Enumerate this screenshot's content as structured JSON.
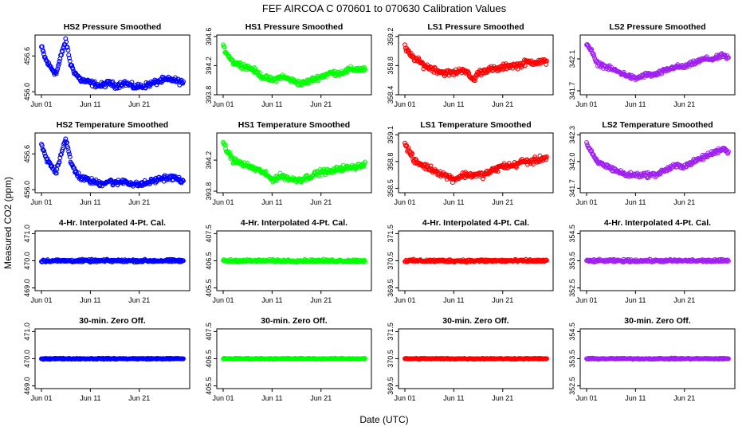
{
  "figure": {
    "title": "FEF   AIRCOA C   070601 to 070630   Calibration Values",
    "xlabel": "Date (UTC)",
    "ylabel": "Measured CO2 (ppm)"
  },
  "chart_data": {
    "type": "scatter",
    "marker": "open-circle",
    "x_range": [
      0,
      29
    ],
    "x_ticks": [
      {
        "value": 0,
        "label": "Jun 01"
      },
      {
        "value": 10,
        "label": "Jun 11"
      },
      {
        "value": 20,
        "label": "Jun 21"
      }
    ],
    "columns": [
      {
        "name": "HS2",
        "color": "#0000ff"
      },
      {
        "name": "HS1",
        "color": "#00ff00"
      },
      {
        "name": "LS1",
        "color": "#ff0000"
      },
      {
        "name": "LS2",
        "color": "#a020f0"
      }
    ],
    "panels": [
      {
        "title": "HS2 Pressure Smoothed",
        "ylim": [
          455.95,
          456.95
        ],
        "yticks": [
          "456.0",
          "456.6"
        ],
        "ytick_values": [
          456.0,
          456.6
        ],
        "series": [
          [
            0,
            456.75
          ],
          [
            0.8,
            456.55
          ],
          [
            1.5,
            456.45
          ],
          [
            3,
            456.3
          ],
          [
            4.5,
            456.75
          ],
          [
            5,
            456.85
          ],
          [
            6,
            456.45
          ],
          [
            7,
            456.3
          ],
          [
            8,
            456.2
          ],
          [
            10,
            456.15
          ],
          [
            12,
            456.1
          ],
          [
            14,
            456.15
          ],
          [
            15,
            456.1
          ],
          [
            17,
            456.15
          ],
          [
            19,
            456.08
          ],
          [
            21,
            456.1
          ],
          [
            23,
            456.15
          ],
          [
            25,
            456.2
          ],
          [
            27,
            456.2
          ],
          [
            29,
            456.15
          ]
        ],
        "noise": 0.07
      },
      {
        "title": "HS1 Pressure Smoothed",
        "ylim": [
          393.8,
          394.62
        ],
        "yticks": [
          "393.8",
          "394.2",
          "394.6"
        ],
        "ytick_values": [
          393.8,
          394.2,
          394.6
        ],
        "series": [
          [
            0,
            394.45
          ],
          [
            1,
            394.35
          ],
          [
            2,
            394.25
          ],
          [
            4,
            394.2
          ],
          [
            6,
            394.15
          ],
          [
            8,
            394.05
          ],
          [
            10,
            394.0
          ],
          [
            12,
            394.05
          ],
          [
            14,
            394.0
          ],
          [
            16,
            393.95
          ],
          [
            18,
            394.0
          ],
          [
            20,
            394.05
          ],
          [
            22,
            394.1
          ],
          [
            24,
            394.1
          ],
          [
            26,
            394.15
          ],
          [
            29,
            394.15
          ]
        ],
        "noise": 0.05
      },
      {
        "title": "LS1 Pressure Smoothed",
        "ylim": [
          358.4,
          359.22
        ],
        "yticks": [
          "358.4",
          "358.8",
          "359.2"
        ],
        "ytick_values": [
          358.4,
          358.8,
          359.2
        ],
        "series": [
          [
            0,
            359.05
          ],
          [
            1,
            358.95
          ],
          [
            2,
            358.9
          ],
          [
            4,
            358.8
          ],
          [
            6,
            358.75
          ],
          [
            8,
            358.7
          ],
          [
            10,
            358.7
          ],
          [
            12,
            358.75
          ],
          [
            14,
            358.6
          ],
          [
            15,
            358.7
          ],
          [
            17,
            358.75
          ],
          [
            19,
            358.75
          ],
          [
            21,
            358.8
          ],
          [
            23,
            358.8
          ],
          [
            25,
            358.85
          ],
          [
            27,
            358.85
          ],
          [
            29,
            358.85
          ]
        ],
        "noise": 0.06
      },
      {
        "title": "LS2 Pressure Smoothed",
        "ylim": [
          341.65,
          342.4
        ],
        "yticks": [
          "341.7",
          "342.1"
        ],
        "ytick_values": [
          341.7,
          342.1
        ],
        "series": [
          [
            0,
            342.3
          ],
          [
            1,
            342.2
          ],
          [
            2,
            342.05
          ],
          [
            4,
            342.0
          ],
          [
            6,
            341.95
          ],
          [
            8,
            341.9
          ],
          [
            10,
            341.85
          ],
          [
            12,
            341.9
          ],
          [
            14,
            341.9
          ],
          [
            16,
            341.95
          ],
          [
            18,
            342.0
          ],
          [
            20,
            342.0
          ],
          [
            22,
            342.05
          ],
          [
            24,
            342.1
          ],
          [
            26,
            342.1
          ],
          [
            28,
            342.15
          ],
          [
            29,
            342.1
          ]
        ],
        "noise": 0.04
      },
      {
        "title": "HS2 Temperature Smoothed",
        "ylim": [
          455.95,
          456.95
        ],
        "yticks": [
          "456.0",
          "456.6"
        ],
        "ytick_values": [
          456.0,
          456.6
        ],
        "series": [
          [
            0,
            456.75
          ],
          [
            0.8,
            456.55
          ],
          [
            1.5,
            456.45
          ],
          [
            3,
            456.3
          ],
          [
            4.5,
            456.75
          ],
          [
            5,
            456.85
          ],
          [
            6,
            456.45
          ],
          [
            7,
            456.3
          ],
          [
            8,
            456.2
          ],
          [
            10,
            456.15
          ],
          [
            12,
            456.1
          ],
          [
            14,
            456.15
          ],
          [
            15,
            456.1
          ],
          [
            17,
            456.15
          ],
          [
            19,
            456.08
          ],
          [
            21,
            456.1
          ],
          [
            23,
            456.15
          ],
          [
            25,
            456.2
          ],
          [
            27,
            456.2
          ],
          [
            29,
            456.15
          ]
        ],
        "noise": 0.07
      },
      {
        "title": "HS1 Temperature Smoothed",
        "ylim": [
          393.78,
          394.55
        ],
        "yticks": [
          "393.8",
          "394.2"
        ],
        "ytick_values": [
          393.8,
          394.2
        ],
        "series": [
          [
            0,
            394.4
          ],
          [
            1,
            394.3
          ],
          [
            2,
            394.2
          ],
          [
            4,
            394.15
          ],
          [
            6,
            394.1
          ],
          [
            8,
            394.05
          ],
          [
            10,
            393.95
          ],
          [
            12,
            394.0
          ],
          [
            14,
            393.95
          ],
          [
            16,
            393.95
          ],
          [
            18,
            394.0
          ],
          [
            20,
            394.05
          ],
          [
            22,
            394.05
          ],
          [
            24,
            394.1
          ],
          [
            26,
            394.1
          ],
          [
            29,
            394.15
          ]
        ],
        "noise": 0.05
      },
      {
        "title": "LS1 Temperature Smoothed",
        "ylim": [
          358.45,
          359.12
        ],
        "yticks": [
          "358.5",
          "358.8",
          "359.1"
        ],
        "ytick_values": [
          358.5,
          358.8,
          359.1
        ],
        "series": [
          [
            0,
            359.0
          ],
          [
            1,
            358.9
          ],
          [
            2,
            358.8
          ],
          [
            4,
            358.75
          ],
          [
            6,
            358.7
          ],
          [
            8,
            358.65
          ],
          [
            10,
            358.6
          ],
          [
            12,
            358.65
          ],
          [
            14,
            358.65
          ],
          [
            16,
            358.65
          ],
          [
            18,
            358.7
          ],
          [
            20,
            358.75
          ],
          [
            22,
            358.75
          ],
          [
            24,
            358.8
          ],
          [
            26,
            358.8
          ],
          [
            29,
            358.85
          ]
        ],
        "noise": 0.05
      },
      {
        "title": "LS2 Temperature Smoothed",
        "ylim": [
          341.65,
          342.32
        ],
        "yticks": [
          "341.7",
          "342.0",
          "342.3"
        ],
        "ytick_values": [
          341.7,
          342.0,
          342.3
        ],
        "series": [
          [
            0,
            342.2
          ],
          [
            1,
            342.1
          ],
          [
            2,
            342.0
          ],
          [
            4,
            341.95
          ],
          [
            6,
            341.9
          ],
          [
            8,
            341.85
          ],
          [
            10,
            341.85
          ],
          [
            12,
            341.85
          ],
          [
            14,
            341.85
          ],
          [
            16,
            341.9
          ],
          [
            18,
            341.95
          ],
          [
            20,
            341.95
          ],
          [
            22,
            342.0
          ],
          [
            24,
            342.05
          ],
          [
            26,
            342.1
          ],
          [
            28,
            342.15
          ],
          [
            29,
            342.1
          ]
        ],
        "noise": 0.04
      },
      {
        "title": "4-Hr. Interpolated 4-Pt. Cal.",
        "ylim": [
          468.9,
          471.1
        ],
        "yticks": [
          "469.0",
          "470.0",
          "471.0"
        ],
        "ytick_values": [
          469.0,
          470.0,
          471.0
        ],
        "series": [
          [
            0,
            470.0
          ],
          [
            29,
            470.0
          ]
        ],
        "noise": 0.07
      },
      {
        "title": "4-Hr. Interpolated 4-Pt. Cal.",
        "ylim": [
          405.4,
          407.6
        ],
        "yticks": [
          "405.5",
          "406.5",
          "407.5"
        ],
        "ytick_values": [
          405.5,
          406.5,
          407.5
        ],
        "series": [
          [
            0,
            406.5
          ],
          [
            29,
            406.5
          ]
        ],
        "noise": 0.07
      },
      {
        "title": "4-Hr. Interpolated 4-Pt. Cal.",
        "ylim": [
          369.4,
          371.6
        ],
        "yticks": [
          "369.5",
          "370.5",
          "371.5"
        ],
        "ytick_values": [
          369.5,
          370.5,
          371.5
        ],
        "series": [
          [
            0,
            370.5
          ],
          [
            29,
            370.5
          ]
        ],
        "noise": 0.07
      },
      {
        "title": "4-Hr. Interpolated 4-Pt. Cal.",
        "ylim": [
          352.4,
          354.6
        ],
        "yticks": [
          "352.5",
          "353.5",
          "354.5"
        ],
        "ytick_values": [
          352.5,
          353.5,
          354.5
        ],
        "series": [
          [
            0,
            353.5
          ],
          [
            29,
            353.5
          ]
        ],
        "noise": 0.07
      },
      {
        "title": "30-min. Zero Off.",
        "ylim": [
          468.9,
          471.1
        ],
        "yticks": [
          "469.0",
          "470.0",
          "471.0"
        ],
        "ytick_values": [
          469.0,
          470.0,
          471.0
        ],
        "series": [
          [
            0,
            470.0
          ],
          [
            29,
            470.0
          ]
        ],
        "noise": 0.03
      },
      {
        "title": "30-min. Zero Off.",
        "ylim": [
          405.4,
          407.6
        ],
        "yticks": [
          "405.5",
          "406.5",
          "407.5"
        ],
        "ytick_values": [
          405.5,
          406.5,
          407.5
        ],
        "series": [
          [
            0,
            406.5
          ],
          [
            29,
            406.5
          ]
        ],
        "noise": 0.03
      },
      {
        "title": "30-min. Zero Off.",
        "ylim": [
          369.4,
          371.6
        ],
        "yticks": [
          "369.5",
          "370.5",
          "371.5"
        ],
        "ytick_values": [
          369.5,
          370.5,
          371.5
        ],
        "series": [
          [
            0,
            370.5
          ],
          [
            29,
            370.5
          ]
        ],
        "noise": 0.03
      },
      {
        "title": "30-min. Zero Off.",
        "ylim": [
          352.4,
          354.6
        ],
        "yticks": [
          "352.5",
          "353.5",
          "354.5"
        ],
        "ytick_values": [
          352.5,
          353.5,
          354.5
        ],
        "series": [
          [
            0,
            353.5
          ],
          [
            29,
            353.5
          ]
        ],
        "noise": 0.03
      }
    ]
  }
}
